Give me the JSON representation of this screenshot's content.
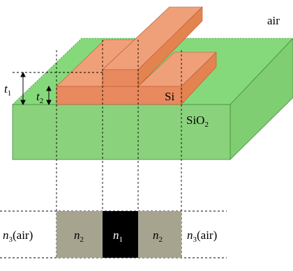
{
  "structure": {
    "top_medium": "air",
    "core_material": "Si",
    "substrate_material": "SiO",
    "substrate_subscript": "2",
    "thickness_total": {
      "symbol": "t",
      "sub": "1"
    },
    "thickness_slab": {
      "symbol": "t",
      "sub": "2"
    }
  },
  "index_profile": {
    "left_outer": {
      "symbol": "n",
      "sub": "3",
      "suffix": "(air)"
    },
    "left_slab": {
      "symbol": "n",
      "sub": "2"
    },
    "center_core": {
      "symbol": "n",
      "sub": "1"
    },
    "right_slab": {
      "symbol": "n",
      "sub": "2"
    },
    "right_outer": {
      "symbol": "n",
      "sub": "3",
      "suffix": "(air)"
    }
  },
  "colors": {
    "substrate_front": "#8bd27d",
    "substrate_top": "#86d97b",
    "substrate_side": "#7fce71",
    "silicon_front": "#e8895f",
    "silicon_top": "#f0a079",
    "silicon_side": "#e38350",
    "slab_gray": "#a6a48f",
    "core_black": "#000000",
    "edge_dark": "#3e8a3a",
    "edge_si": "#b85a30"
  }
}
